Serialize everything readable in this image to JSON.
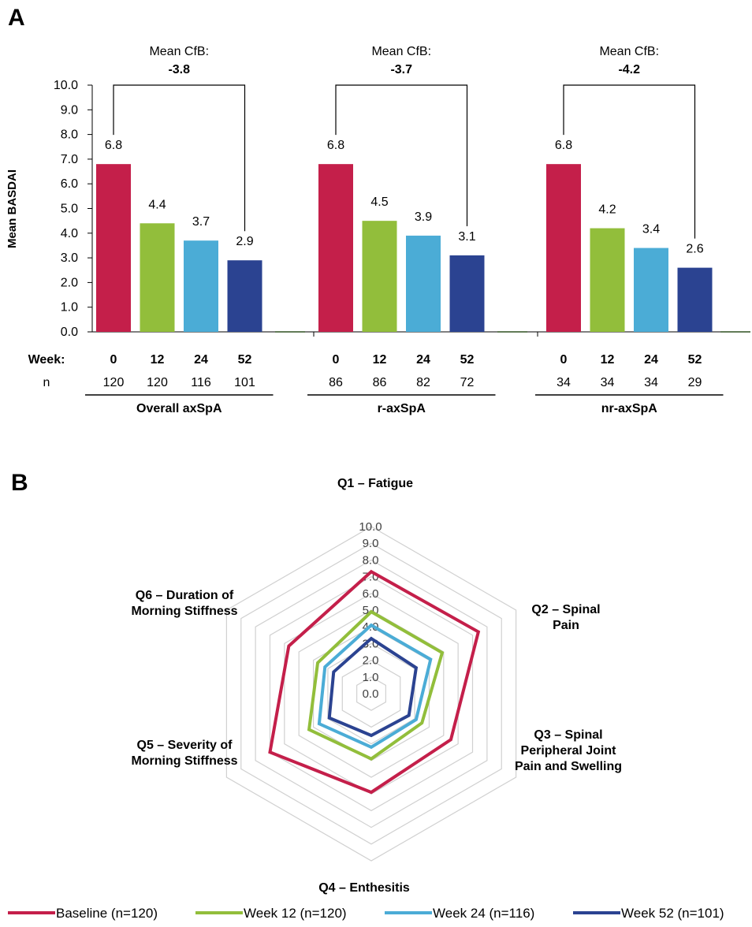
{
  "panel_a_letter": "A",
  "panel_b_letter": "B",
  "chart_data": [
    {
      "type": "bar",
      "ylabel": "Mean BASDAI",
      "ylim": [
        0,
        10
      ],
      "yticks": [
        "0.0",
        "1.0",
        "2.0",
        "3.0",
        "4.0",
        "5.0",
        "6.0",
        "7.0",
        "8.0",
        "9.0",
        "10.0"
      ],
      "week_label": "Week:",
      "n_label": "n",
      "colors": [
        "#c41f4a",
        "#92be3b",
        "#4bacd6",
        "#2b4391"
      ],
      "groups": [
        {
          "name": "Overall axSpA",
          "cfb_label": "Mean CfB:",
          "cfb_value": "-3.8",
          "categories": [
            "0",
            "12",
            "24",
            "52"
          ],
          "values": [
            6.8,
            4.4,
            3.7,
            2.9
          ],
          "labels": [
            "6.8",
            "4.4",
            "3.7",
            "2.9"
          ],
          "n": [
            "120",
            "120",
            "116",
            "101"
          ]
        },
        {
          "name": "r-axSpA",
          "cfb_label": "Mean CfB:",
          "cfb_value": "-3.7",
          "categories": [
            "0",
            "12",
            "24",
            "52"
          ],
          "values": [
            6.8,
            4.5,
            3.9,
            3.1
          ],
          "labels": [
            "6.8",
            "4.5",
            "3.9",
            "3.1"
          ],
          "n": [
            "86",
            "86",
            "82",
            "72"
          ]
        },
        {
          "name": "nr-axSpA",
          "cfb_label": "Mean CfB:",
          "cfb_value": "-4.2",
          "categories": [
            "0",
            "12",
            "24",
            "52"
          ],
          "values": [
            6.8,
            4.2,
            3.4,
            2.6
          ],
          "labels": [
            "6.8",
            "4.2",
            "3.4",
            "2.6"
          ],
          "n": [
            "34",
            "34",
            "34",
            "29"
          ]
        }
      ]
    },
    {
      "type": "radar",
      "rlim": [
        0,
        10
      ],
      "rticks": [
        "0.0",
        "1.0",
        "2.0",
        "3.0",
        "4.0",
        "5.0",
        "6.0",
        "7.0",
        "8.0",
        "9.0",
        "10.0"
      ],
      "axes": [
        [
          "Q1 – Fatigue"
        ],
        [
          "Q2 – Spinal",
          "Pain"
        ],
        [
          "Q3 – Spinal",
          "Peripheral Joint",
          "Pain and Swelling"
        ],
        [
          "Q4 – Enthesitis"
        ],
        [
          "Q5 – Severity of",
          "Morning Stiffness"
        ],
        [
          "Q6 – Duration of",
          "Morning Stiffness"
        ]
      ],
      "series": [
        {
          "name": "Baseline (n=120)",
          "color": "#c41f4a",
          "values": [
            7.3,
            7.4,
            5.5,
            5.9,
            7.0,
            5.7
          ]
        },
        {
          "name": "Week 12 (n=120)",
          "color": "#92be3b",
          "values": [
            4.9,
            4.9,
            3.5,
            3.9,
            4.3,
            3.7
          ]
        },
        {
          "name": "Week 24 (n=116)",
          "color": "#4bacd6",
          "values": [
            4.1,
            4.1,
            3.1,
            3.2,
            3.6,
            3.2
          ]
        },
        {
          "name": "Week 52 (n=101)",
          "color": "#2b4391",
          "values": [
            3.3,
            3.1,
            2.6,
            2.5,
            2.9,
            2.6
          ]
        }
      ]
    }
  ]
}
